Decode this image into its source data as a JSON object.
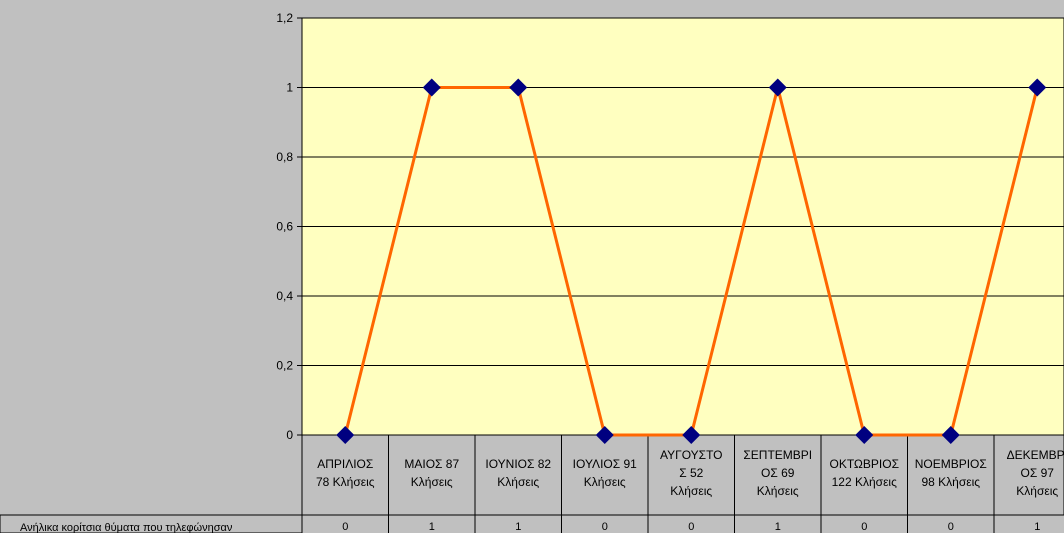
{
  "chart_data": {
    "type": "line",
    "categories": [
      [
        "ΑΠΡΙΛΙΟΣ",
        "78 Κλήσεις"
      ],
      [
        "ΜΑΙΟΣ 87",
        "Κλήσεις"
      ],
      [
        "ΙΟΥΝΙΟΣ 82",
        "Κλήσεις"
      ],
      [
        "ΙΟΥΛΙΟΣ 91",
        "Κλήσεις"
      ],
      [
        "ΑΥΓΟΥΣΤΟ",
        "Σ 52",
        "Κλήσεις"
      ],
      [
        "ΣΕΠΤΕΜΒΡΙ",
        "ΟΣ 69",
        "Κλήσεις"
      ],
      [
        "ΟΚΤΩΒΡΙΟΣ",
        "122 Κλήσεις"
      ],
      [
        "ΝΟΕΜΒΡΙΟΣ",
        "98 Κλήσεις"
      ],
      [
        "ΔΕΚΕΜΒΡΙ",
        "ΟΣ 97",
        "Κλήσεις"
      ]
    ],
    "series": [
      {
        "name": "Ανήλικα κορίτσια θύματα που τηλεφώνησαν",
        "values": [
          0,
          1,
          1,
          0,
          0,
          1,
          0,
          0,
          1
        ],
        "line_color": "#ff6600",
        "marker_color": "#000080",
        "marker": "diamond"
      }
    ],
    "table_values": [
      "0",
      "1",
      "1",
      "0",
      "0",
      "1",
      "0",
      "0",
      "1"
    ],
    "y_ticks": [
      "0",
      "0,2",
      "0,4",
      "0,6",
      "0,8",
      "1",
      "1,2"
    ],
    "ylim": [
      0,
      1.2
    ],
    "grid": true,
    "plot_background": "#ffffc0",
    "page_background": "#c0c0c0"
  }
}
